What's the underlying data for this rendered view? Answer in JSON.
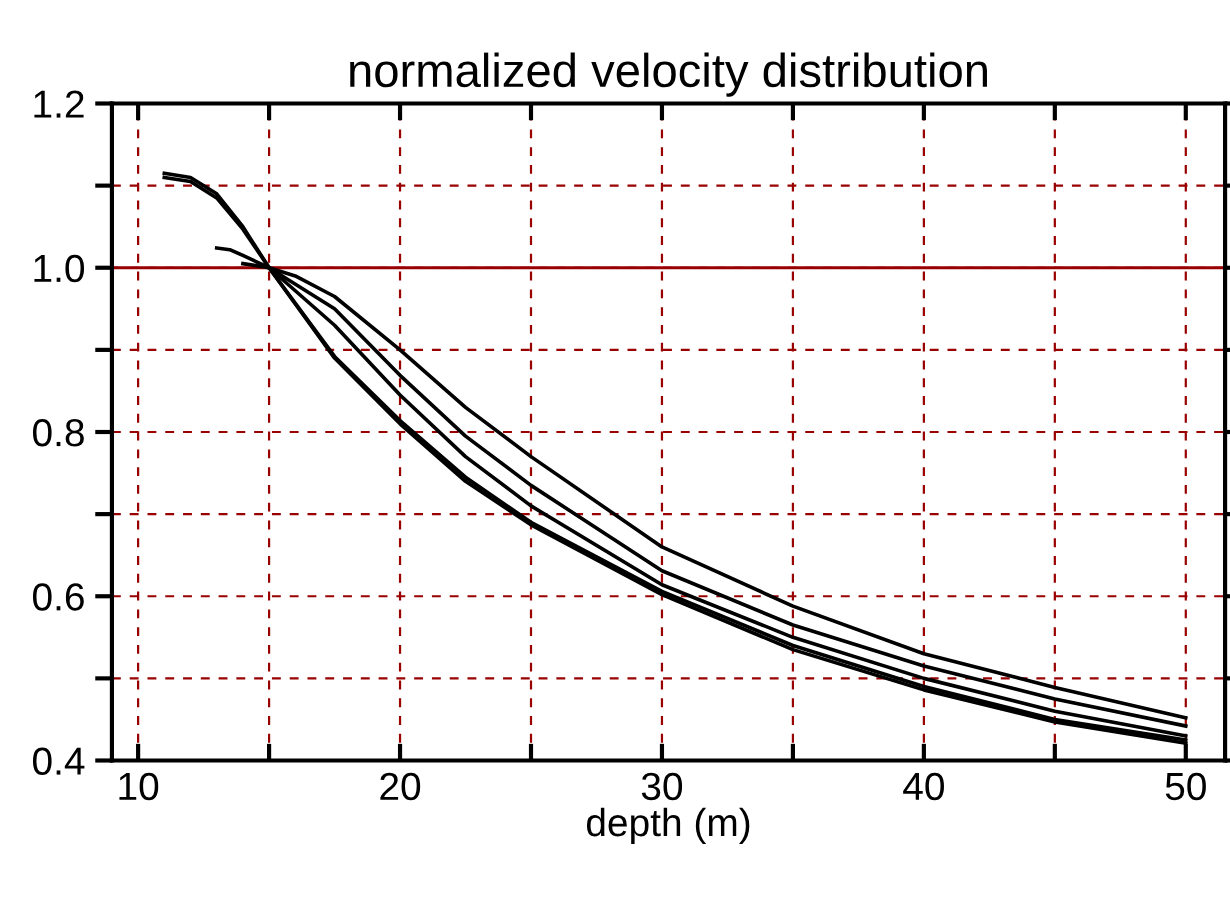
{
  "chart_data": {
    "type": "line",
    "title": "normalized velocity distribution",
    "xlabel": "depth (m)",
    "xlim": [
      9,
      51.5
    ],
    "ylim": [
      0.4,
      1.2
    ],
    "xticks": [
      10,
      {
        "value": 15,
        "label": null
      },
      20,
      {
        "value": 25,
        "label": null
      },
      30,
      {
        "value": 35,
        "label": null
      },
      40,
      {
        "value": 45,
        "label": null
      },
      50
    ],
    "yticks": [
      0.4,
      {
        "value": 0.5,
        "label": null
      },
      0.6,
      {
        "value": 0.7,
        "label": null
      },
      0.8,
      {
        "value": 0.9,
        "label": null
      },
      {
        "value": 1.0,
        "label": "1.0"
      },
      {
        "value": 1.1,
        "label": null
      },
      1.2
    ],
    "grid": true,
    "line_style": "solid",
    "marker": "none",
    "ref_lines": [
      {
        "axis": "y",
        "value": 1.0,
        "label": null,
        "color": "#990000",
        "line_style": "solid"
      }
    ],
    "series": [
      {
        "color": "#000000",
        "x": [
          11,
          12,
          13,
          14,
          15,
          17.5,
          20,
          22.5,
          25,
          30,
          35,
          40,
          45,
          50
        ],
        "values": [
          1.115,
          1.11,
          1.09,
          1.05,
          1.0,
          0.89,
          0.81,
          0.74,
          0.687,
          0.602,
          0.535,
          0.486,
          0.447,
          0.421
        ]
      },
      {
        "color": "#000000",
        "x": [
          11,
          12,
          13,
          14,
          15,
          17.5,
          20,
          22.5,
          25,
          30,
          35,
          40,
          45,
          50
        ],
        "values": [
          1.11,
          1.105,
          1.085,
          1.047,
          1.0,
          0.892,
          0.814,
          0.745,
          0.69,
          0.606,
          0.54,
          0.49,
          0.45,
          0.425
        ]
      },
      {
        "color": "#000000",
        "x": [
          13,
          13.5,
          14,
          15,
          17.5,
          20,
          22.5,
          25,
          30,
          35,
          40,
          45,
          50
        ],
        "values": [
          1.024,
          1.022,
          1.015,
          1.0,
          0.93,
          0.845,
          0.77,
          0.71,
          0.614,
          0.55,
          0.5,
          0.46,
          0.43
        ]
      },
      {
        "color": "#000000",
        "x": [
          14,
          15,
          17.5,
          20,
          22.5,
          25,
          30,
          35,
          40,
          45,
          50
        ],
        "values": [
          1.005,
          1.0,
          0.95,
          0.869,
          0.795,
          0.735,
          0.631,
          0.565,
          0.515,
          0.475,
          0.442
        ]
      },
      {
        "color": "#000000",
        "x": [
          15,
          16,
          17.5,
          20,
          22.5,
          25,
          30,
          35,
          40,
          45,
          50
        ],
        "values": [
          1.0,
          0.99,
          0.965,
          0.9,
          0.83,
          0.77,
          0.66,
          0.588,
          0.53,
          0.489,
          0.452
        ]
      }
    ]
  }
}
